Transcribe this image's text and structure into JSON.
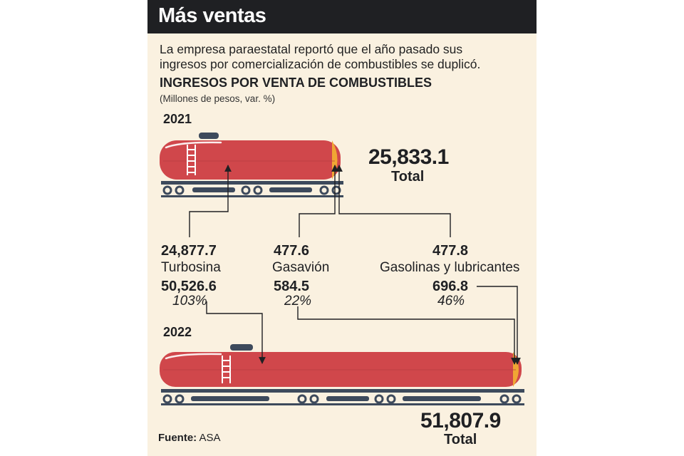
{
  "header": {
    "title": "Más ventas"
  },
  "intro": {
    "line1": "La empresa paraestatal reportó que el año pasado sus",
    "line2": "ingresos por comercialización de combustibles se duplicó."
  },
  "colors": {
    "tank": "#d0474b",
    "cap": "#f0a634",
    "rail": "#3d4a5c",
    "header_bg": "#1f2023",
    "background": "#faf1e0"
  },
  "chart_data": {
    "type": "bar",
    "title": "INGRESOS POR VENTA DE COMBUSTIBLES",
    "subtitle": "(Millones de pesos, var. %)",
    "categories": [
      "Turbosina",
      "Gasavión",
      "Gasolinas y lubricantes"
    ],
    "series": [
      {
        "name": "2021",
        "values": [
          "24,877.7",
          "477.6",
          "477.8"
        ],
        "total": "25,833.1"
      },
      {
        "name": "2022",
        "values": [
          "50,526.6",
          "584.5",
          "696.8"
        ],
        "total": "51,807.9"
      }
    ],
    "variation": [
      "103%",
      "22%",
      "46%"
    ],
    "total_label": "Total"
  },
  "source": {
    "label": "Fuente:",
    "value": "ASA"
  }
}
